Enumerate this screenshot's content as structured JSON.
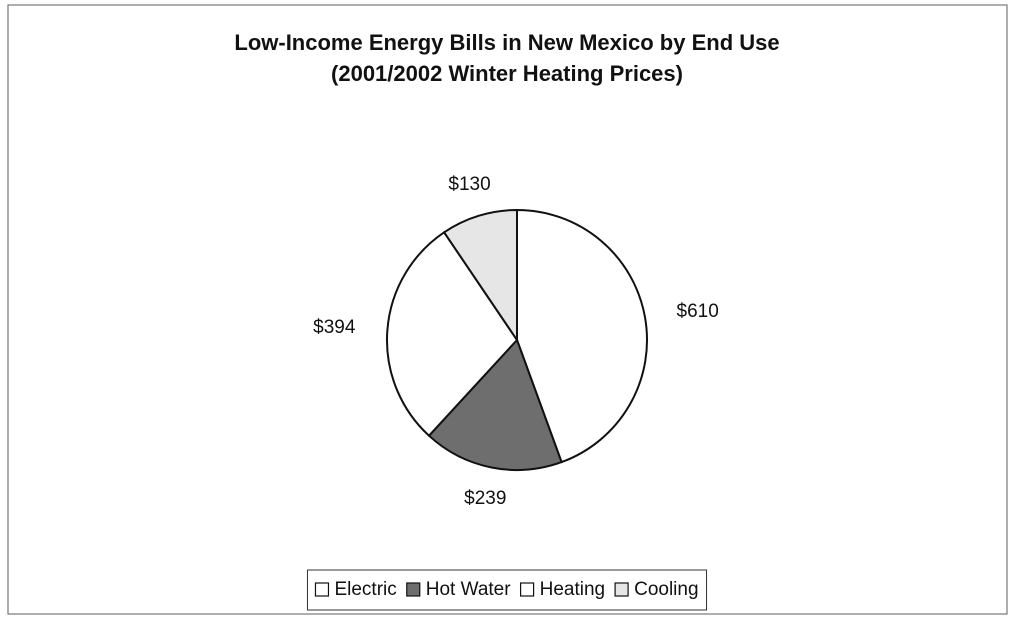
{
  "chart_data": {
    "type": "pie",
    "title": "Low-Income Energy Bills in New Mexico by End Use",
    "subtitle": "(2001/2002 Winter Heating Prices)",
    "categories": [
      "Electric",
      "Hot Water",
      "Heating",
      "Cooling"
    ],
    "values": [
      610,
      239,
      394,
      130
    ],
    "value_labels": [
      "$610",
      "$239",
      "$394",
      "$130"
    ],
    "colors": [
      "#ffffff",
      "#6e6e6e",
      "#ffffff",
      "#e6e6e6"
    ],
    "legend": "bottom"
  }
}
